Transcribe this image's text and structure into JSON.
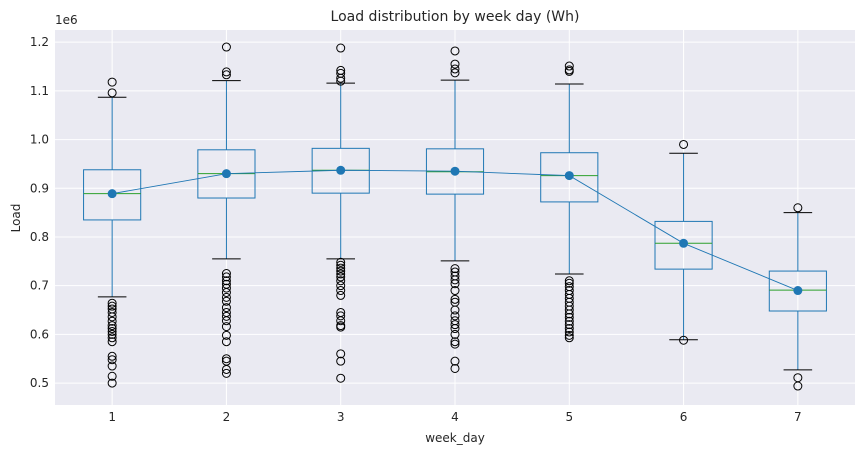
{
  "chart_data": {
    "type": "box",
    "title": "Load distribution by week day (Wh)",
    "xlabel": "week_day",
    "ylabel": "Load",
    "y_offset_label": "1e6",
    "y_scale": 1000000,
    "ylim": [
      0.455,
      1.225
    ],
    "yticks": [
      0.5,
      0.6,
      0.7,
      0.8,
      0.9,
      1.0,
      1.1,
      1.2
    ],
    "ytick_labels": [
      "0.5",
      "0.6",
      "0.7",
      "0.8",
      "0.9",
      "1.0",
      "1.1",
      "1.2"
    ],
    "categories": [
      "1",
      "2",
      "3",
      "4",
      "5",
      "6",
      "7"
    ],
    "grid": true,
    "boxes": [
      {
        "q1": 0.835,
        "median": 0.889,
        "q3": 0.938,
        "whisker_low": 0.677,
        "whisker_high": 1.087,
        "fliers": [
          1.118,
          1.096,
          0.664,
          0.658,
          0.652,
          0.645,
          0.636,
          0.627,
          0.618,
          0.612,
          0.606,
          0.6,
          0.593,
          0.585,
          0.555,
          0.548,
          0.535,
          0.514,
          0.5
        ]
      },
      {
        "q1": 0.88,
        "median": 0.93,
        "q3": 0.979,
        "whisker_low": 0.755,
        "whisker_high": 1.121,
        "fliers": [
          1.19,
          1.139,
          1.133,
          0.725,
          0.718,
          0.71,
          0.703,
          0.695,
          0.686,
          0.676,
          0.668,
          0.655,
          0.645,
          0.637,
          0.628,
          0.616,
          0.598,
          0.585,
          0.55,
          0.545,
          0.528,
          0.52
        ]
      },
      {
        "q1": 0.89,
        "median": 0.937,
        "q3": 0.982,
        "whisker_low": 0.755,
        "whisker_high": 1.116,
        "fliers": [
          1.188,
          1.142,
          1.136,
          1.126,
          1.12,
          0.748,
          0.742,
          0.736,
          0.73,
          0.724,
          0.718,
          0.71,
          0.7,
          0.69,
          0.68,
          0.645,
          0.638,
          0.628,
          0.618,
          0.615,
          0.56,
          0.545,
          0.51
        ]
      },
      {
        "q1": 0.888,
        "median": 0.934,
        "q3": 0.981,
        "whisker_low": 0.751,
        "whisker_high": 1.122,
        "fliers": [
          1.182,
          1.155,
          1.145,
          1.137,
          0.735,
          0.728,
          0.72,
          0.712,
          0.704,
          0.69,
          0.672,
          0.666,
          0.65,
          0.638,
          0.628,
          0.62,
          0.612,
          0.6,
          0.585,
          0.58,
          0.545,
          0.53
        ]
      },
      {
        "q1": 0.872,
        "median": 0.926,
        "q3": 0.973,
        "whisker_low": 0.724,
        "whisker_high": 1.114,
        "fliers": [
          1.151,
          1.143,
          1.14,
          0.71,
          0.705,
          0.698,
          0.69,
          0.682,
          0.674,
          0.666,
          0.658,
          0.65,
          0.642,
          0.635,
          0.627,
          0.62,
          0.612,
          0.605,
          0.598,
          0.593
        ]
      },
      {
        "q1": 0.734,
        "median": 0.787,
        "q3": 0.832,
        "whisker_low": 0.589,
        "whisker_high": 0.972,
        "fliers": [
          0.99,
          0.588
        ]
      },
      {
        "q1": 0.648,
        "median": 0.691,
        "q3": 0.73,
        "whisker_low": 0.527,
        "whisker_high": 0.85,
        "fliers": [
          0.86,
          0.511,
          0.494
        ]
      }
    ],
    "mean_line": {
      "values": [
        0.889,
        0.93,
        0.937,
        0.935,
        0.926,
        0.787,
        0.69
      ]
    },
    "colors": {
      "plot_background": "#eaeaf2",
      "grid": "#ffffff",
      "box": "#1f77b4",
      "median": "#2ca02c",
      "mean_marker": "#1f77b4",
      "flier": "#000000",
      "text": "#262626"
    }
  }
}
